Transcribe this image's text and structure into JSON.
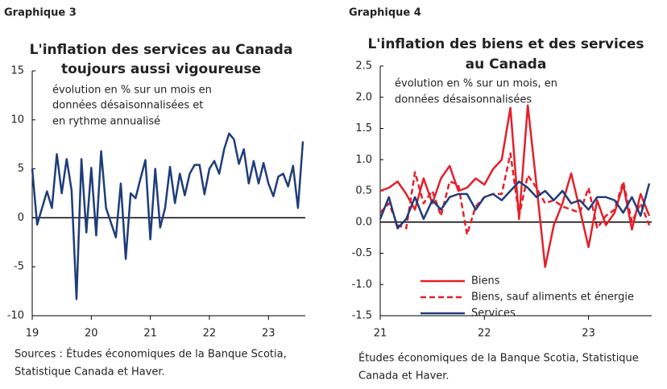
{
  "chart_data": [
    {
      "type": "line",
      "label": "Graphique 3",
      "title": [
        "L'inflation des services au Canada",
        "toujours aussi vigoureuse"
      ],
      "subtitle": [
        "évolution en % sur un mois en",
        "données désaisonnalisées et",
        "en rythme annualisé"
      ],
      "source": [
        "Sources : Études économiques de la Banque Scotia,",
        "Statistique Canada et Haver."
      ],
      "categories": [
        "19",
        null,
        null,
        null,
        null,
        null,
        null,
        null,
        null,
        null,
        null,
        null,
        "20",
        null,
        null,
        null,
        null,
        null,
        null,
        null,
        null,
        null,
        null,
        null,
        "21",
        null,
        null,
        null,
        null,
        null,
        null,
        null,
        null,
        null,
        null,
        null,
        "22",
        null,
        null,
        null,
        null,
        null,
        null,
        null,
        null,
        null,
        null,
        null,
        "23",
        null,
        null,
        null,
        null,
        null,
        null,
        null
      ],
      "values": [
        5,
        -0.7,
        1,
        2.7,
        1,
        6.5,
        2.5,
        6,
        2.8,
        -8.3,
        6,
        -1.5,
        5.1,
        -1.8,
        6.8,
        1,
        -0.5,
        -2,
        3.5,
        -4.2,
        2.5,
        2,
        4,
        5.9,
        -2.2,
        5,
        -1,
        1,
        5.2,
        1.5,
        4.5,
        2.3,
        4.5,
        5.4,
        5.4,
        2.4,
        5,
        5.8,
        4.5,
        7,
        8.6,
        8,
        5.5,
        7,
        3.5,
        5.8,
        3.5,
        5.6,
        3.5,
        2.2,
        4.2,
        4.5,
        3.2,
        5.3,
        1,
        7.8
      ],
      "color": "#1f3d7a",
      "ylim": [
        -10,
        15
      ],
      "yticks": [
        -10,
        -5,
        0,
        5,
        10,
        15
      ]
    },
    {
      "type": "line",
      "label": "Graphique 4",
      "title": [
        "L'inflation des biens et des services",
        "au Canada"
      ],
      "subtitle": [
        "évolution en % sur un mois, en",
        "données désaisonnalisées"
      ],
      "source": [
        "Études économiques de la Banque Scotia, Statistique",
        "Canada et Haver."
      ],
      "categories": [
        "21",
        null,
        null,
        null,
        null,
        null,
        null,
        null,
        null,
        null,
        null,
        null,
        "22",
        null,
        null,
        null,
        null,
        null,
        null,
        null,
        null,
        null,
        null,
        null,
        "23",
        null,
        null,
        null,
        null,
        null,
        null,
        null
      ],
      "series": [
        {
          "name": "Biens",
          "color": "#e4202a",
          "dashed": false,
          "values": [
            0.5,
            0.55,
            0.65,
            0.45,
            0.2,
            0.7,
            0.3,
            0.7,
            0.9,
            0.5,
            0.55,
            0.7,
            0.6,
            0.85,
            1.0,
            1.83,
            0.05,
            1.87,
            0.6,
            -0.72,
            -0.05,
            0.3,
            0.78,
            0.2,
            -0.4,
            0.35,
            -0.05,
            0.15,
            0.6,
            -0.12,
            0.45,
            0.1
          ]
        },
        {
          "name": "Biens, sauf aliments et énergie",
          "color": "#e4202a",
          "dashed": true,
          "values": [
            0.15,
            0.3,
            -0.05,
            -0.1,
            0.8,
            0.3,
            0.5,
            0.1,
            0.65,
            0.6,
            -0.2,
            0.25,
            0.4,
            0.45,
            0.45,
            1.1,
            0.1,
            0.75,
            0.55,
            0.3,
            0.35,
            0.25,
            0.2,
            0.15,
            0.55,
            -0.1,
            0.1,
            0.2,
            0.65,
            0.0,
            0.3,
            -0.05
          ]
        },
        {
          "name": "Services",
          "color": "#1f3d7a",
          "dashed": false,
          "values": [
            0.05,
            0.4,
            -0.1,
            0.05,
            0.4,
            0.05,
            0.35,
            0.2,
            0.4,
            0.45,
            0.45,
            0.2,
            0.4,
            0.45,
            0.35,
            0.5,
            0.65,
            0.55,
            0.4,
            0.5,
            0.35,
            0.5,
            0.3,
            0.35,
            0.2,
            0.4,
            0.4,
            0.35,
            0.15,
            0.4,
            0.1,
            0.62
          ]
        }
      ],
      "ylim": [
        -1.5,
        2.5
      ],
      "yticks": [
        -1.5,
        {
          "value": -1,
          "label": "-1.0"
        },
        -0.5,
        {
          "value": 0,
          "label": "0.0"
        },
        0.5,
        {
          "value": 1,
          "label": "1.0"
        },
        1.5,
        {
          "value": 2,
          "label": "2.0"
        },
        2.5
      ],
      "legend": "lower left"
    }
  ]
}
